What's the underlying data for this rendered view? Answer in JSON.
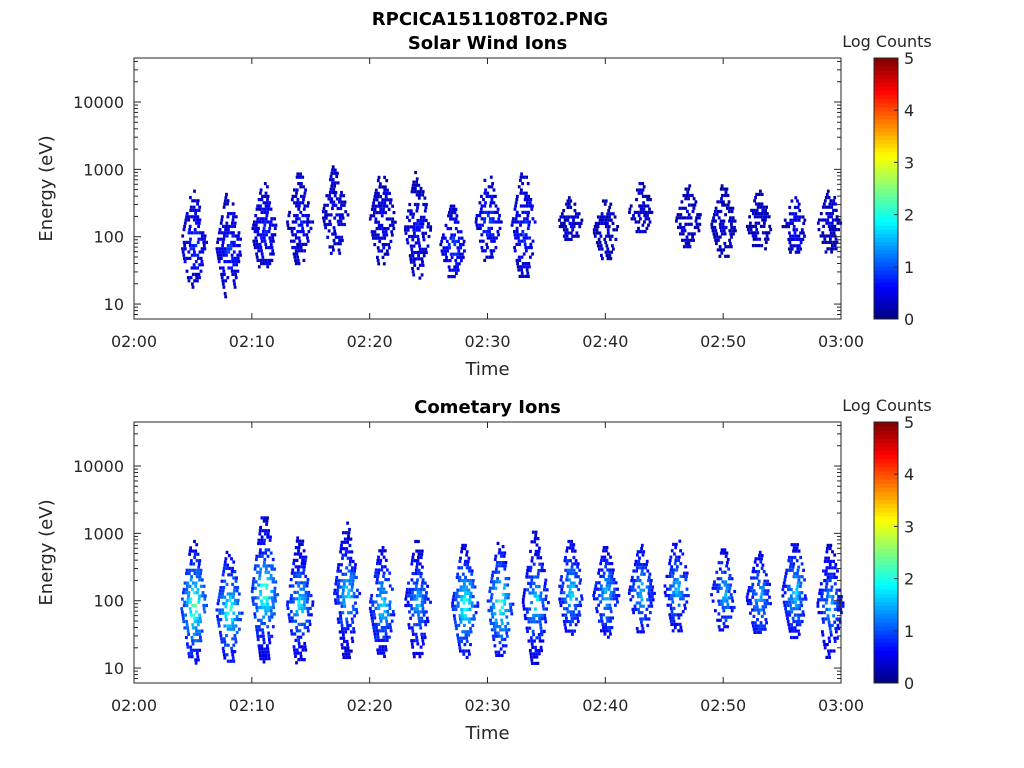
{
  "figure": {
    "title": "RPCICA151108T02.PNG"
  },
  "chart_data": [
    {
      "type": "heatmap",
      "title": "Solar Wind Ions",
      "xlabel": "Time",
      "ylabel": "Energy (eV)",
      "x_ticks": [
        "02:00",
        "02:10",
        "02:20",
        "02:30",
        "02:40",
        "02:50",
        "03:00"
      ],
      "x_range": [
        "02:00",
        "03:00"
      ],
      "y_scale": "log",
      "y_ticks": [
        "10",
        "100",
        "1000",
        "10000"
      ],
      "y_range": [
        6,
        45000
      ],
      "colorbar": {
        "title": "Log Counts",
        "ticks": [
          "0",
          "1",
          "2",
          "3",
          "4",
          "5"
        ],
        "range": [
          0,
          5
        ],
        "colormap": "jet"
      },
      "bursts": [
        {
          "t": "02:05",
          "e_min": 18,
          "e_max": 500,
          "peak": 0.8
        },
        {
          "t": "02:08",
          "e_min": 13,
          "e_max": 500,
          "peak": 0.8
        },
        {
          "t": "02:11",
          "e_min": 28,
          "e_max": 650,
          "peak": 0.7
        },
        {
          "t": "02:14",
          "e_min": 40,
          "e_max": 900,
          "peak": 0.6
        },
        {
          "t": "02:17",
          "e_min": 55,
          "e_max": 1150,
          "peak": 0.5
        },
        {
          "t": "02:21",
          "e_min": 40,
          "e_max": 1000,
          "peak": 0.5
        },
        {
          "t": "02:24",
          "e_min": 25,
          "e_max": 950,
          "peak": 0.6
        },
        {
          "t": "02:27",
          "e_min": 25,
          "e_max": 300,
          "peak": 0.8
        },
        {
          "t": "02:30",
          "e_min": 45,
          "e_max": 900,
          "peak": 0.8
        },
        {
          "t": "02:33",
          "e_min": 25,
          "e_max": 900,
          "peak": 0.8
        },
        {
          "t": "02:37",
          "e_min": 90,
          "e_max": 400,
          "peak": 0.3
        },
        {
          "t": "02:40",
          "e_min": 50,
          "e_max": 400,
          "peak": 0.3
        },
        {
          "t": "02:43",
          "e_min": 120,
          "e_max": 650,
          "peak": 0.3
        },
        {
          "t": "02:47",
          "e_min": 70,
          "e_max": 600,
          "peak": 0.3
        },
        {
          "t": "02:50",
          "e_min": 50,
          "e_max": 600,
          "peak": 0.3
        },
        {
          "t": "02:53",
          "e_min": 60,
          "e_max": 500,
          "peak": 0.3
        },
        {
          "t": "02:56",
          "e_min": 60,
          "e_max": 400,
          "peak": 0.5
        },
        {
          "t": "02:59",
          "e_min": 60,
          "e_max": 500,
          "peak": 0.3
        }
      ]
    },
    {
      "type": "heatmap",
      "title": "Cometary Ions",
      "xlabel": "Time",
      "ylabel": "Energy (eV)",
      "x_ticks": [
        "02:00",
        "02:10",
        "02:20",
        "02:30",
        "02:40",
        "02:50",
        "03:00"
      ],
      "x_range": [
        "02:00",
        "03:00"
      ],
      "y_scale": "log",
      "y_ticks": [
        "10",
        "100",
        "1000",
        "10000"
      ],
      "y_range": [
        6,
        45000
      ],
      "colorbar": {
        "title": "Log Counts",
        "ticks": [
          "0",
          "1",
          "2",
          "3",
          "4",
          "5"
        ],
        "range": [
          0,
          5
        ],
        "colormap": "jet"
      },
      "bursts": [
        {
          "t": "02:05",
          "e_min": 12,
          "e_max": 800,
          "peak": 2.5
        },
        {
          "t": "02:08",
          "e_min": 12,
          "e_max": 550,
          "peak": 2.2
        },
        {
          "t": "02:11",
          "e_min": 12,
          "e_max": 2000,
          "peak": 2.4
        },
        {
          "t": "02:14",
          "e_min": 12,
          "e_max": 900,
          "peak": 1.8
        },
        {
          "t": "02:18",
          "e_min": 15,
          "e_max": 1500,
          "peak": 1.8
        },
        {
          "t": "02:21",
          "e_min": 15,
          "e_max": 650,
          "peak": 1.8
        },
        {
          "t": "02:24",
          "e_min": 15,
          "e_max": 800,
          "peak": 1.6
        },
        {
          "t": "02:28",
          "e_min": 15,
          "e_max": 700,
          "peak": 2.2
        },
        {
          "t": "02:31",
          "e_min": 15,
          "e_max": 750,
          "peak": 2.3
        },
        {
          "t": "02:34",
          "e_min": 12,
          "e_max": 1100,
          "peak": 1.8
        },
        {
          "t": "02:37",
          "e_min": 30,
          "e_max": 800,
          "peak": 1.7
        },
        {
          "t": "02:40",
          "e_min": 30,
          "e_max": 650,
          "peak": 1.6
        },
        {
          "t": "02:43",
          "e_min": 35,
          "e_max": 700,
          "peak": 1.6
        },
        {
          "t": "02:46",
          "e_min": 35,
          "e_max": 900,
          "peak": 1.6
        },
        {
          "t": "02:50",
          "e_min": 35,
          "e_max": 600,
          "peak": 1.5
        },
        {
          "t": "02:53",
          "e_min": 30,
          "e_max": 550,
          "peak": 1.5
        },
        {
          "t": "02:56",
          "e_min": 30,
          "e_max": 800,
          "peak": 1.7
        },
        {
          "t": "02:59",
          "e_min": 15,
          "e_max": 700,
          "peak": 1.5
        }
      ]
    }
  ]
}
